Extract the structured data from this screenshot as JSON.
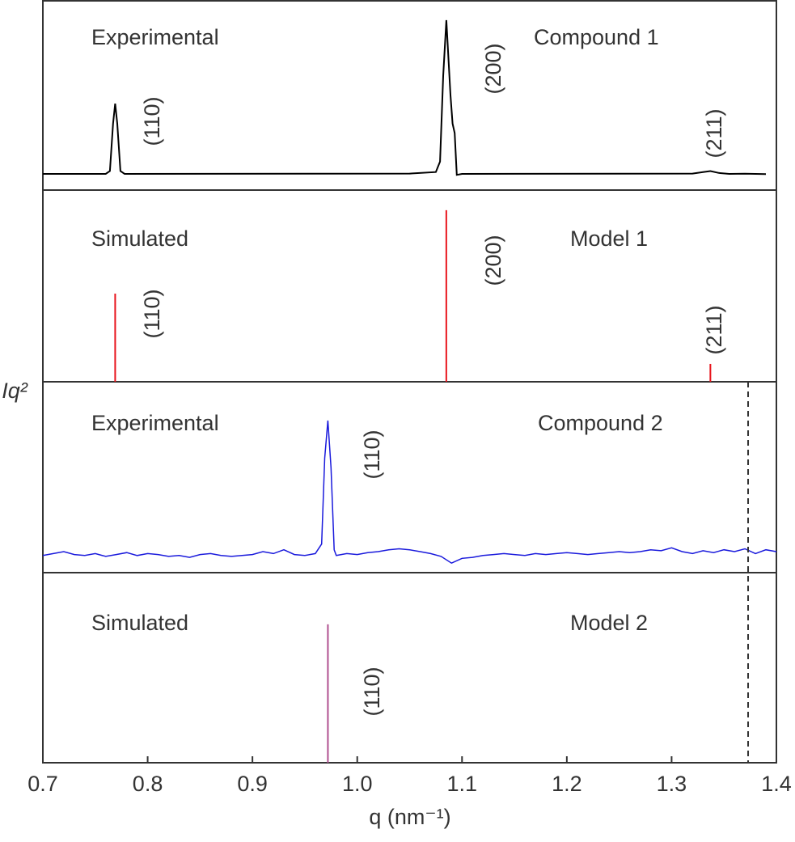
{
  "chart_data": {
    "type": "stacked",
    "xlim": [
      0.7,
      1.4
    ],
    "xticks": [
      0.7,
      0.8,
      0.9,
      {
        "value": 1.0,
        "label": "1.0"
      },
      1.1,
      1.2,
      1.3,
      1.4
    ],
    "xlabel": "q (nm⁻¹)",
    "ylabel": "Iq²",
    "vline": 1.373,
    "panels": [
      {
        "type": "line",
        "color": "#000000",
        "ylim": [
          0,
          1
        ],
        "title": "Experimental",
        "name": "Compound 1",
        "annotations": [
          "(110)",
          "(200)",
          "(211)"
        ],
        "x": [
          0.7,
          0.76,
          0.764,
          0.767,
          0.769,
          0.771,
          0.774,
          0.778,
          1.05,
          1.075,
          1.079,
          1.082,
          1.085,
          1.087,
          1.089,
          1.091,
          1.093,
          1.095,
          1.1,
          1.32,
          1.33,
          1.337,
          1.345,
          1.355,
          1.37,
          1.39
        ],
        "values": [
          0.085,
          0.085,
          0.1,
          0.35,
          0.455,
          0.35,
          0.1,
          0.085,
          0.087,
          0.095,
          0.15,
          0.6,
          0.894,
          0.7,
          0.5,
          0.35,
          0.3,
          0.08,
          0.085,
          0.087,
          0.095,
          0.1,
          0.09,
          0.085,
          0.086,
          0.084
        ]
      },
      {
        "type": "stem",
        "color": "#e8141c",
        "ylim": [
          0,
          1
        ],
        "title": "Simulated",
        "name": "Model 1",
        "annotations": [
          "(110)",
          "(200)",
          "(211)"
        ],
        "x": [
          0.769,
          1.085,
          1.337
        ],
        "values": [
          0.46,
          0.895,
          0.093
        ]
      },
      {
        "type": "line",
        "color": "#1a1adc",
        "ylim": [
          0,
          1
        ],
        "title": "Experimental",
        "name": "Compound 2",
        "annotations": [
          "(110)"
        ],
        "x": [
          0.7,
          0.71,
          0.72,
          0.73,
          0.74,
          0.75,
          0.76,
          0.77,
          0.78,
          0.79,
          0.8,
          0.81,
          0.82,
          0.83,
          0.84,
          0.85,
          0.86,
          0.87,
          0.88,
          0.89,
          0.9,
          0.91,
          0.92,
          0.93,
          0.94,
          0.95,
          0.96,
          0.966,
          0.969,
          0.972,
          0.975,
          0.978,
          0.98,
          0.99,
          1.0,
          1.01,
          1.02,
          1.03,
          1.04,
          1.05,
          1.06,
          1.07,
          1.08,
          1.09,
          1.1,
          1.11,
          1.12,
          1.13,
          1.14,
          1.15,
          1.16,
          1.17,
          1.18,
          1.19,
          1.2,
          1.21,
          1.22,
          1.23,
          1.24,
          1.25,
          1.26,
          1.27,
          1.28,
          1.29,
          1.3,
          1.31,
          1.32,
          1.33,
          1.34,
          1.35,
          1.36,
          1.37,
          1.38,
          1.39,
          1.4
        ],
        "values": [
          0.09,
          0.1,
          0.11,
          0.095,
          0.09,
          0.1,
          0.085,
          0.095,
          0.105,
          0.09,
          0.1,
          0.095,
          0.085,
          0.09,
          0.08,
          0.095,
          0.1,
          0.09,
          0.085,
          0.09,
          0.095,
          0.11,
          0.1,
          0.12,
          0.095,
          0.09,
          0.1,
          0.15,
          0.6,
          0.797,
          0.55,
          0.12,
          0.09,
          0.1,
          0.095,
          0.105,
          0.11,
          0.12,
          0.125,
          0.12,
          0.11,
          0.1,
          0.085,
          0.05,
          0.075,
          0.08,
          0.09,
          0.095,
          0.1,
          0.095,
          0.09,
          0.1,
          0.095,
          0.1,
          0.105,
          0.1,
          0.095,
          0.1,
          0.105,
          0.11,
          0.105,
          0.11,
          0.12,
          0.115,
          0.13,
          0.11,
          0.1,
          0.115,
          0.105,
          0.12,
          0.11,
          0.125,
          0.1,
          0.12,
          0.11
        ]
      },
      {
        "type": "stem",
        "color": "#b05090",
        "ylim": [
          0,
          1
        ],
        "title": "Simulated",
        "name": "Model 2",
        "annotations": [
          "(110)"
        ],
        "x": [
          0.972
        ],
        "values": [
          0.728
        ]
      }
    ]
  }
}
